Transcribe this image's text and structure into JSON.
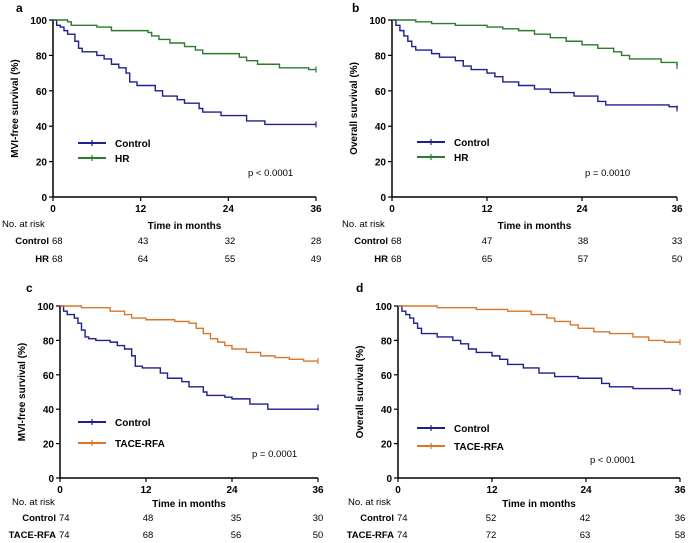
{
  "colors": {
    "control": "#1f1f8f",
    "hr": "#2e7a2e",
    "tace": "#d9782a",
    "axis": "#000000"
  },
  "chart_data": [
    {
      "panel": "a",
      "type": "line",
      "title": "a",
      "ylabel": "MVI-free survival (%)",
      "xlabel": "Time in months",
      "xlim": [
        0,
        36
      ],
      "ylim": [
        0,
        100
      ],
      "xticks": [
        "0",
        "12",
        "24",
        "36"
      ],
      "yticks": [
        "0",
        "20",
        "40",
        "60",
        "80",
        "100"
      ],
      "p_value": "p < 0.0001",
      "risk_header": "No. at risk",
      "series": [
        {
          "name": "Control",
          "color": "control",
          "risk_label": "Control",
          "at_risk": [
            "68",
            "43",
            "32",
            "28"
          ],
          "points": [
            [
              0,
              100
            ],
            [
              0.5,
              97
            ],
            [
              1,
              96
            ],
            [
              1.5,
              94
            ],
            [
              2,
              92
            ],
            [
              3,
              88
            ],
            [
              3.5,
              84
            ],
            [
              4,
              82
            ],
            [
              6,
              80
            ],
            [
              7,
              78
            ],
            [
              8,
              75
            ],
            [
              9,
              73
            ],
            [
              10,
              70
            ],
            [
              10.5,
              65
            ],
            [
              11.5,
              63
            ],
            [
              14,
              60
            ],
            [
              15,
              57
            ],
            [
              17,
              55
            ],
            [
              18,
              53
            ],
            [
              20,
              50
            ],
            [
              20.5,
              48
            ],
            [
              23,
              46
            ],
            [
              26.5,
              43
            ],
            [
              29,
              41
            ],
            [
              36,
              41
            ]
          ]
        },
        {
          "name": "HR",
          "color": "hr",
          "risk_label": "HR",
          "at_risk": [
            "68",
            "64",
            "55",
            "49"
          ],
          "points": [
            [
              0,
              100
            ],
            [
              2,
              99
            ],
            [
              2.5,
              97
            ],
            [
              6,
              96
            ],
            [
              8,
              94
            ],
            [
              13,
              93
            ],
            [
              13.5,
              91
            ],
            [
              14.5,
              89
            ],
            [
              16,
              87
            ],
            [
              18,
              85
            ],
            [
              19.5,
              83
            ],
            [
              20.5,
              81
            ],
            [
              25.5,
              79
            ],
            [
              26.5,
              77
            ],
            [
              28,
              75
            ],
            [
              31,
              73
            ],
            [
              35,
              72
            ],
            [
              36,
              72
            ]
          ]
        }
      ]
    },
    {
      "panel": "b",
      "type": "line",
      "title": "b",
      "ylabel": "Overall survival (%)",
      "xlabel": "Time in months",
      "xlim": [
        0,
        36
      ],
      "ylim": [
        0,
        100
      ],
      "xticks": [
        "0",
        "12",
        "24",
        "36"
      ],
      "yticks": [
        "0",
        "20",
        "40",
        "60",
        "80",
        "100"
      ],
      "p_value": "p = 0.0010",
      "risk_header": "No. at risk",
      "series": [
        {
          "name": "Control",
          "color": "control",
          "risk_label": "Control",
          "at_risk": [
            "68",
            "47",
            "38",
            "33"
          ],
          "points": [
            [
              0,
              100
            ],
            [
              0.5,
              97
            ],
            [
              1,
              94
            ],
            [
              1.5,
              91
            ],
            [
              2,
              88
            ],
            [
              2.5,
              85
            ],
            [
              3,
              83
            ],
            [
              5,
              81
            ],
            [
              6,
              79
            ],
            [
              8,
              77
            ],
            [
              9,
              74
            ],
            [
              10,
              72
            ],
            [
              12,
              70
            ],
            [
              13,
              68
            ],
            [
              14,
              65
            ],
            [
              16,
              63
            ],
            [
              18,
              61
            ],
            [
              20,
              59
            ],
            [
              23,
              57
            ],
            [
              26,
              54
            ],
            [
              27,
              52
            ],
            [
              35,
              51
            ],
            [
              36,
              50
            ]
          ]
        },
        {
          "name": "HR",
          "color": "hr",
          "risk_label": "HR",
          "at_risk": [
            "68",
            "65",
            "57",
            "50"
          ],
          "points": [
            [
              0,
              100
            ],
            [
              3,
              99
            ],
            [
              5,
              98
            ],
            [
              8,
              97
            ],
            [
              12,
              96
            ],
            [
              14,
              95
            ],
            [
              16,
              94
            ],
            [
              18,
              92
            ],
            [
              20,
              90
            ],
            [
              22,
              88
            ],
            [
              24,
              86
            ],
            [
              26,
              84
            ],
            [
              28,
              82
            ],
            [
              29,
              80
            ],
            [
              30,
              78
            ],
            [
              34,
              76
            ],
            [
              36,
              74
            ]
          ]
        }
      ]
    },
    {
      "panel": "c",
      "type": "line",
      "title": "c",
      "ylabel": "MVI-free survival (%)",
      "xlabel": "Time in months",
      "xlim": [
        0,
        36
      ],
      "ylim": [
        0,
        100
      ],
      "xticks": [
        "0",
        "12",
        "24",
        "36"
      ],
      "yticks": [
        "0",
        "20",
        "40",
        "60",
        "80",
        "100"
      ],
      "p_value": "p = 0.0001",
      "risk_header": "No. at risk",
      "series": [
        {
          "name": "Control",
          "color": "control",
          "risk_label": "Control",
          "at_risk": [
            "74",
            "48",
            "35",
            "30"
          ],
          "points": [
            [
              0,
              100
            ],
            [
              0.5,
              97
            ],
            [
              1,
              95
            ],
            [
              2,
              93
            ],
            [
              2.5,
              90
            ],
            [
              3,
              86
            ],
            [
              3.5,
              82
            ],
            [
              4,
              81
            ],
            [
              5,
              80
            ],
            [
              7,
              79
            ],
            [
              8,
              77
            ],
            [
              9,
              75
            ],
            [
              10,
              71
            ],
            [
              10.5,
              65
            ],
            [
              11.5,
              64
            ],
            [
              14,
              61
            ],
            [
              15,
              58
            ],
            [
              17,
              56
            ],
            [
              18,
              53
            ],
            [
              20,
              50
            ],
            [
              20.5,
              48
            ],
            [
              23,
              47
            ],
            [
              24,
              46
            ],
            [
              26.5,
              43
            ],
            [
              29,
              40
            ],
            [
              36,
              41
            ]
          ]
        },
        {
          "name": "TACE-RFA",
          "color": "tace",
          "risk_label": "TACE-RFA",
          "at_risk": [
            "74",
            "68",
            "56",
            "50"
          ],
          "points": [
            [
              0,
              100
            ],
            [
              3,
              99
            ],
            [
              7,
              97
            ],
            [
              9,
              95
            ],
            [
              10,
              93
            ],
            [
              12,
              92
            ],
            [
              16,
              91
            ],
            [
              18,
              90
            ],
            [
              19,
              87
            ],
            [
              20,
              84
            ],
            [
              21,
              81
            ],
            [
              22,
              79
            ],
            [
              23,
              77
            ],
            [
              24,
              75
            ],
            [
              26,
              73
            ],
            [
              28,
              71
            ],
            [
              30,
              70
            ],
            [
              32,
              69
            ],
            [
              34,
              68
            ],
            [
              36,
              68
            ]
          ]
        }
      ]
    },
    {
      "panel": "d",
      "type": "line",
      "title": "d",
      "ylabel": "Overall survival (%)",
      "xlabel": "Time in months",
      "xlim": [
        0,
        36
      ],
      "ylim": [
        0,
        100
      ],
      "xticks": [
        "0",
        "12",
        "24",
        "36"
      ],
      "yticks": [
        "0",
        "20",
        "40",
        "60",
        "80",
        "100"
      ],
      "p_value": "p < 0.0001",
      "risk_header": "No. at risk",
      "series": [
        {
          "name": "Control",
          "color": "control",
          "risk_label": "Control",
          "at_risk": [
            "74",
            "52",
            "42",
            "36"
          ],
          "points": [
            [
              0,
              100
            ],
            [
              0.5,
              97
            ],
            [
              1,
              95
            ],
            [
              1.5,
              93
            ],
            [
              2,
              90
            ],
            [
              2.5,
              87
            ],
            [
              3,
              84
            ],
            [
              5,
              82
            ],
            [
              7,
              80
            ],
            [
              8,
              78
            ],
            [
              9,
              75
            ],
            [
              10,
              73
            ],
            [
              12,
              71
            ],
            [
              13,
              69
            ],
            [
              14,
              66
            ],
            [
              16,
              64
            ],
            [
              18,
              61
            ],
            [
              20,
              59
            ],
            [
              23,
              58
            ],
            [
              26,
              55
            ],
            [
              27,
              53
            ],
            [
              30,
              52
            ],
            [
              35,
              51
            ],
            [
              36,
              50
            ]
          ]
        },
        {
          "name": "TACE-RFA",
          "color": "tace",
          "risk_label": "TACE-RFA",
          "at_risk": [
            "74",
            "72",
            "63",
            "58"
          ],
          "points": [
            [
              0,
              100
            ],
            [
              5,
              99
            ],
            [
              10,
              98
            ],
            [
              14,
              97
            ],
            [
              17,
              95
            ],
            [
              19,
              93
            ],
            [
              20,
              91
            ],
            [
              22,
              89
            ],
            [
              23,
              87
            ],
            [
              25,
              85
            ],
            [
              27,
              84
            ],
            [
              30,
              82
            ],
            [
              32,
              80
            ],
            [
              34,
              79
            ],
            [
              36,
              79
            ]
          ]
        }
      ]
    }
  ]
}
